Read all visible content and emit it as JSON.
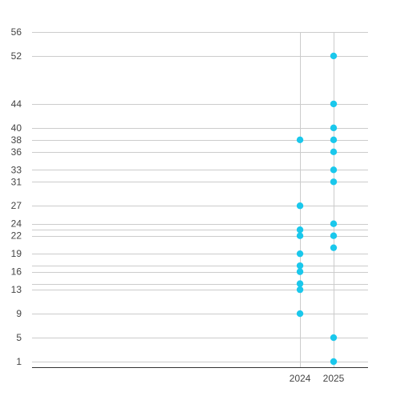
{
  "chart_data": {
    "type": "scatter",
    "title": "",
    "xlabel": "",
    "ylabel": "",
    "x_categories": [
      "2024",
      "2025"
    ],
    "y_ticks": [
      1,
      5,
      9,
      13,
      14,
      16,
      17,
      19,
      22,
      23,
      24,
      27,
      31,
      33,
      36,
      38,
      40,
      44,
      52,
      56
    ],
    "y_tick_labels_shown": [
      1,
      5,
      9,
      13,
      16,
      19,
      22,
      24,
      27,
      31,
      33,
      36,
      38,
      40,
      44,
      52,
      56
    ],
    "ylim": [
      1,
      56
    ],
    "grid": true,
    "legend": "none",
    "marker_color": "#1ac8ec",
    "series": [
      {
        "points": [
          {
            "x": "2024",
            "y": 38
          },
          {
            "x": "2024",
            "y": 27
          },
          {
            "x": "2024",
            "y": 23
          },
          {
            "x": "2024",
            "y": 22
          },
          {
            "x": "2024",
            "y": 19
          },
          {
            "x": "2024",
            "y": 17
          },
          {
            "x": "2024",
            "y": 16
          },
          {
            "x": "2024",
            "y": 14
          },
          {
            "x": "2024",
            "y": 13
          },
          {
            "x": "2024",
            "y": 9
          },
          {
            "x": "2025",
            "y": 52
          },
          {
            "x": "2025",
            "y": 44
          },
          {
            "x": "2025",
            "y": 40
          },
          {
            "x": "2025",
            "y": 38
          },
          {
            "x": "2025",
            "y": 36
          },
          {
            "x": "2025",
            "y": 33
          },
          {
            "x": "2025",
            "y": 31
          },
          {
            "x": "2025",
            "y": 24
          },
          {
            "x": "2025",
            "y": 22
          },
          {
            "x": "2025",
            "y": 20
          },
          {
            "x": "2025",
            "y": 5
          },
          {
            "x": "2025",
            "y": 1
          }
        ]
      }
    ]
  }
}
